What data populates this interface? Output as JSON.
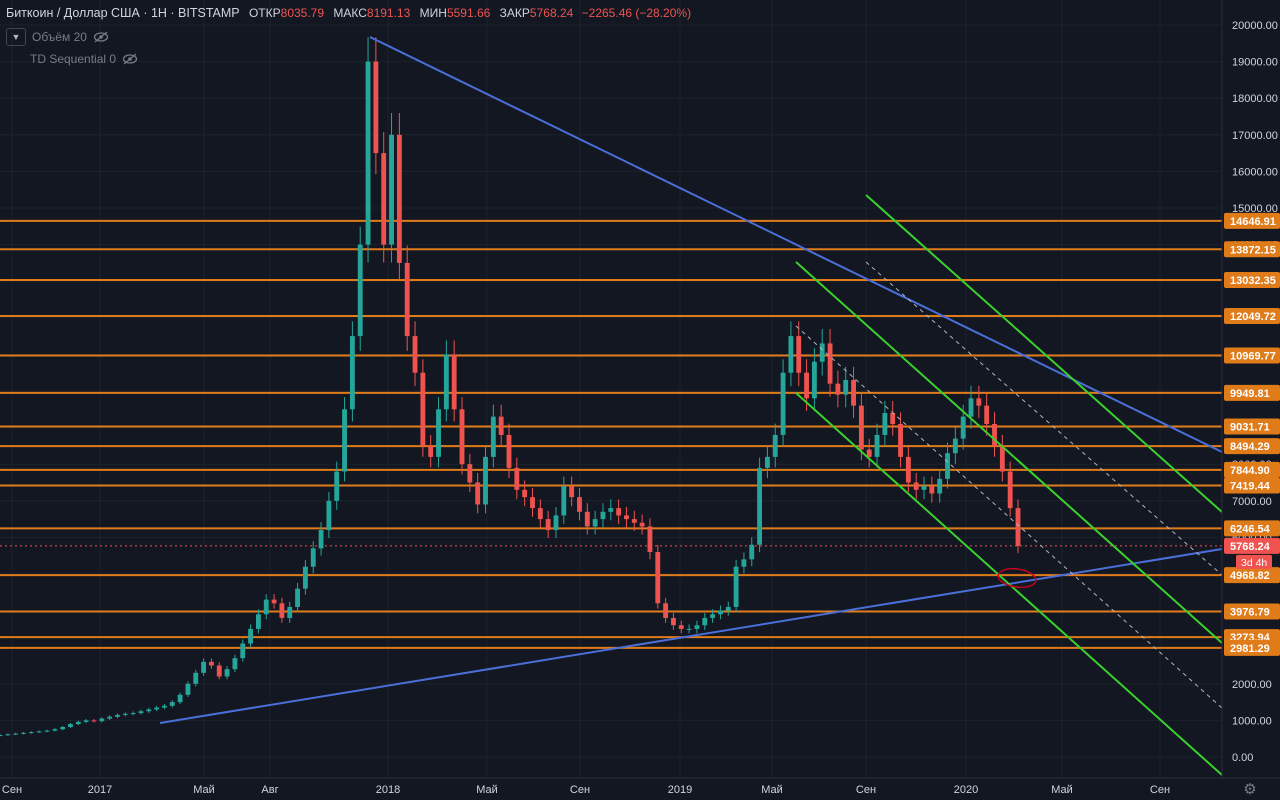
{
  "header": {
    "title": "Биткоин / Доллар США · 1Н · BITSTAMP",
    "ohlc": [
      {
        "label": "ОТКР",
        "value": "8035.79"
      },
      {
        "label": "МАКС",
        "value": "8191.13"
      },
      {
        "label": "МИН",
        "value": "5591.66"
      },
      {
        "label": "ЗАКР",
        "value": "5768.24"
      }
    ],
    "change": "−2265.46 (−28.20%)"
  },
  "indicators": [
    {
      "label": "Объём 20",
      "icon": "eye-crossed-icon"
    },
    {
      "label": "TD Sequential 0",
      "icon": "eye-crossed-icon"
    }
  ],
  "colors": {
    "background": "#131722",
    "up": "#26a69a",
    "down": "#ef5350",
    "level": "#e07b1a",
    "trend": "#4a6fd8",
    "channel": "#3ad12e",
    "axis_text": "#d1d4dc"
  },
  "chart_data": {
    "type": "candlestick",
    "ylim": [
      -500,
      20400
    ],
    "y_ticks": [
      0,
      1000,
      2000,
      3000,
      4000,
      5000,
      6000,
      7000,
      8000,
      9000,
      10000,
      11000,
      12000,
      13000,
      14000,
      15000,
      16000,
      17000,
      18000,
      19000,
      20000
    ],
    "x_ticks": [
      "Сен",
      "2017",
      "Май",
      "Авг",
      "2018",
      "Май",
      "Сен",
      "2019",
      "Май",
      "Сен",
      "2020",
      "Май",
      "Сен"
    ],
    "price_levels": [
      "14646.91",
      "13872.15",
      "13032.35",
      "12049.72",
      "10969.77",
      "9949.81",
      "9031.71",
      "8494.29",
      "7844.90",
      "7419.44",
      "6246.54",
      "4968.82",
      "3976.79",
      "3273.94",
      "2981.29"
    ],
    "last_price": "5768.24",
    "countdown": "3d 4h",
    "closes": [
      600,
      620,
      640,
      660,
      680,
      700,
      720,
      760,
      820,
      900,
      960,
      1000,
      980,
      1050,
      1100,
      1150,
      1180,
      1200,
      1250,
      1300,
      1350,
      1400,
      1500,
      1700,
      2000,
      2300,
      2600,
      2500,
      2200,
      2400,
      2700,
      3100,
      3500,
      3900,
      4300,
      4200,
      3800,
      4100,
      4600,
      5200,
      5700,
      6200,
      7000,
      7800,
      9500,
      11500,
      14000,
      19000,
      16500,
      14000,
      17000,
      13500,
      11500,
      10500,
      8500,
      8200,
      9500,
      11000,
      9500,
      8000,
      7500,
      6900,
      8200,
      9300,
      8800,
      7900,
      7300,
      7100,
      6800,
      6500,
      6200,
      6600,
      7400,
      7100,
      6700,
      6300,
      6500,
      6700,
      6800,
      6600,
      6500,
      6400,
      6300,
      5600,
      4200,
      3800,
      3600,
      3500,
      3500,
      3600,
      3800,
      3900,
      4000,
      4100,
      5200,
      5400,
      5800,
      7900,
      8200,
      8800,
      10500,
      11500,
      10500,
      9800,
      10800,
      11300,
      10200,
      9900,
      10300,
      9600,
      8400,
      8200,
      8800,
      9400,
      9100,
      8200,
      7500,
      7300,
      7400,
      7200,
      7600,
      8300,
      8700,
      9300,
      9800,
      9600,
      9100,
      8500,
      7800,
      6800,
      5768
    ]
  }
}
